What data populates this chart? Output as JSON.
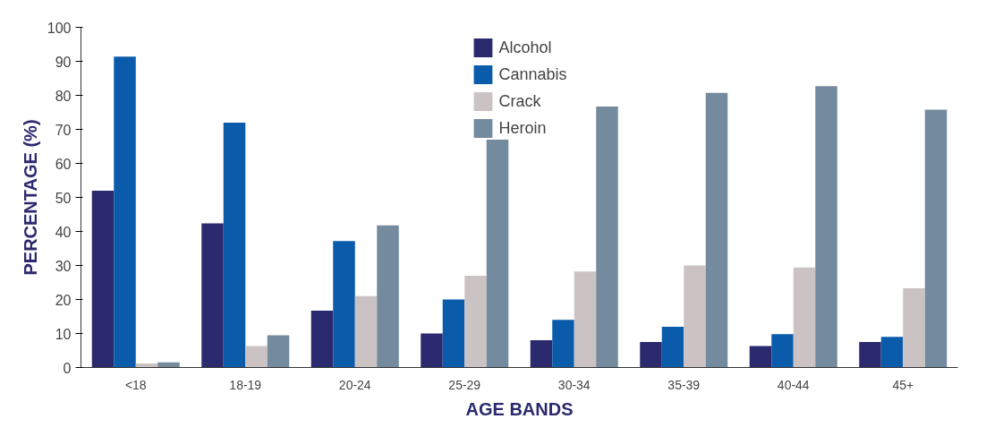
{
  "chart_data": {
    "type": "bar",
    "xlabel": "AGE BANDS",
    "ylabel": "PERCENTAGE (%)",
    "categories": [
      "<18",
      "18-19",
      "20-24",
      "25-29",
      "30-34",
      "35-39",
      "40-44",
      "45+"
    ],
    "series": [
      {
        "name": "Alcohol",
        "color": "#2b2a6e",
        "values": [
          52,
          42.4,
          16.7,
          10,
          8,
          7.5,
          6.3,
          7.5
        ]
      },
      {
        "name": "Cannabis",
        "color": "#0a5cab",
        "values": [
          91.4,
          72,
          37.2,
          20,
          14,
          12,
          9.8,
          9
        ]
      },
      {
        "name": "Crack",
        "color": "#cbc3c3",
        "values": [
          1.2,
          6.3,
          21,
          27,
          28.2,
          30,
          29.4,
          23.3
        ]
      },
      {
        "name": "Heroin",
        "color": "#748a9e",
        "values": [
          1.5,
          9.5,
          41.8,
          67,
          76.7,
          80.7,
          82.7,
          75.8
        ]
      }
    ],
    "ylim": [
      0,
      100
    ],
    "yticks": [
      0,
      10,
      20,
      30,
      40,
      50,
      60,
      70,
      80,
      90,
      100
    ],
    "grid": false,
    "legend": "top"
  }
}
